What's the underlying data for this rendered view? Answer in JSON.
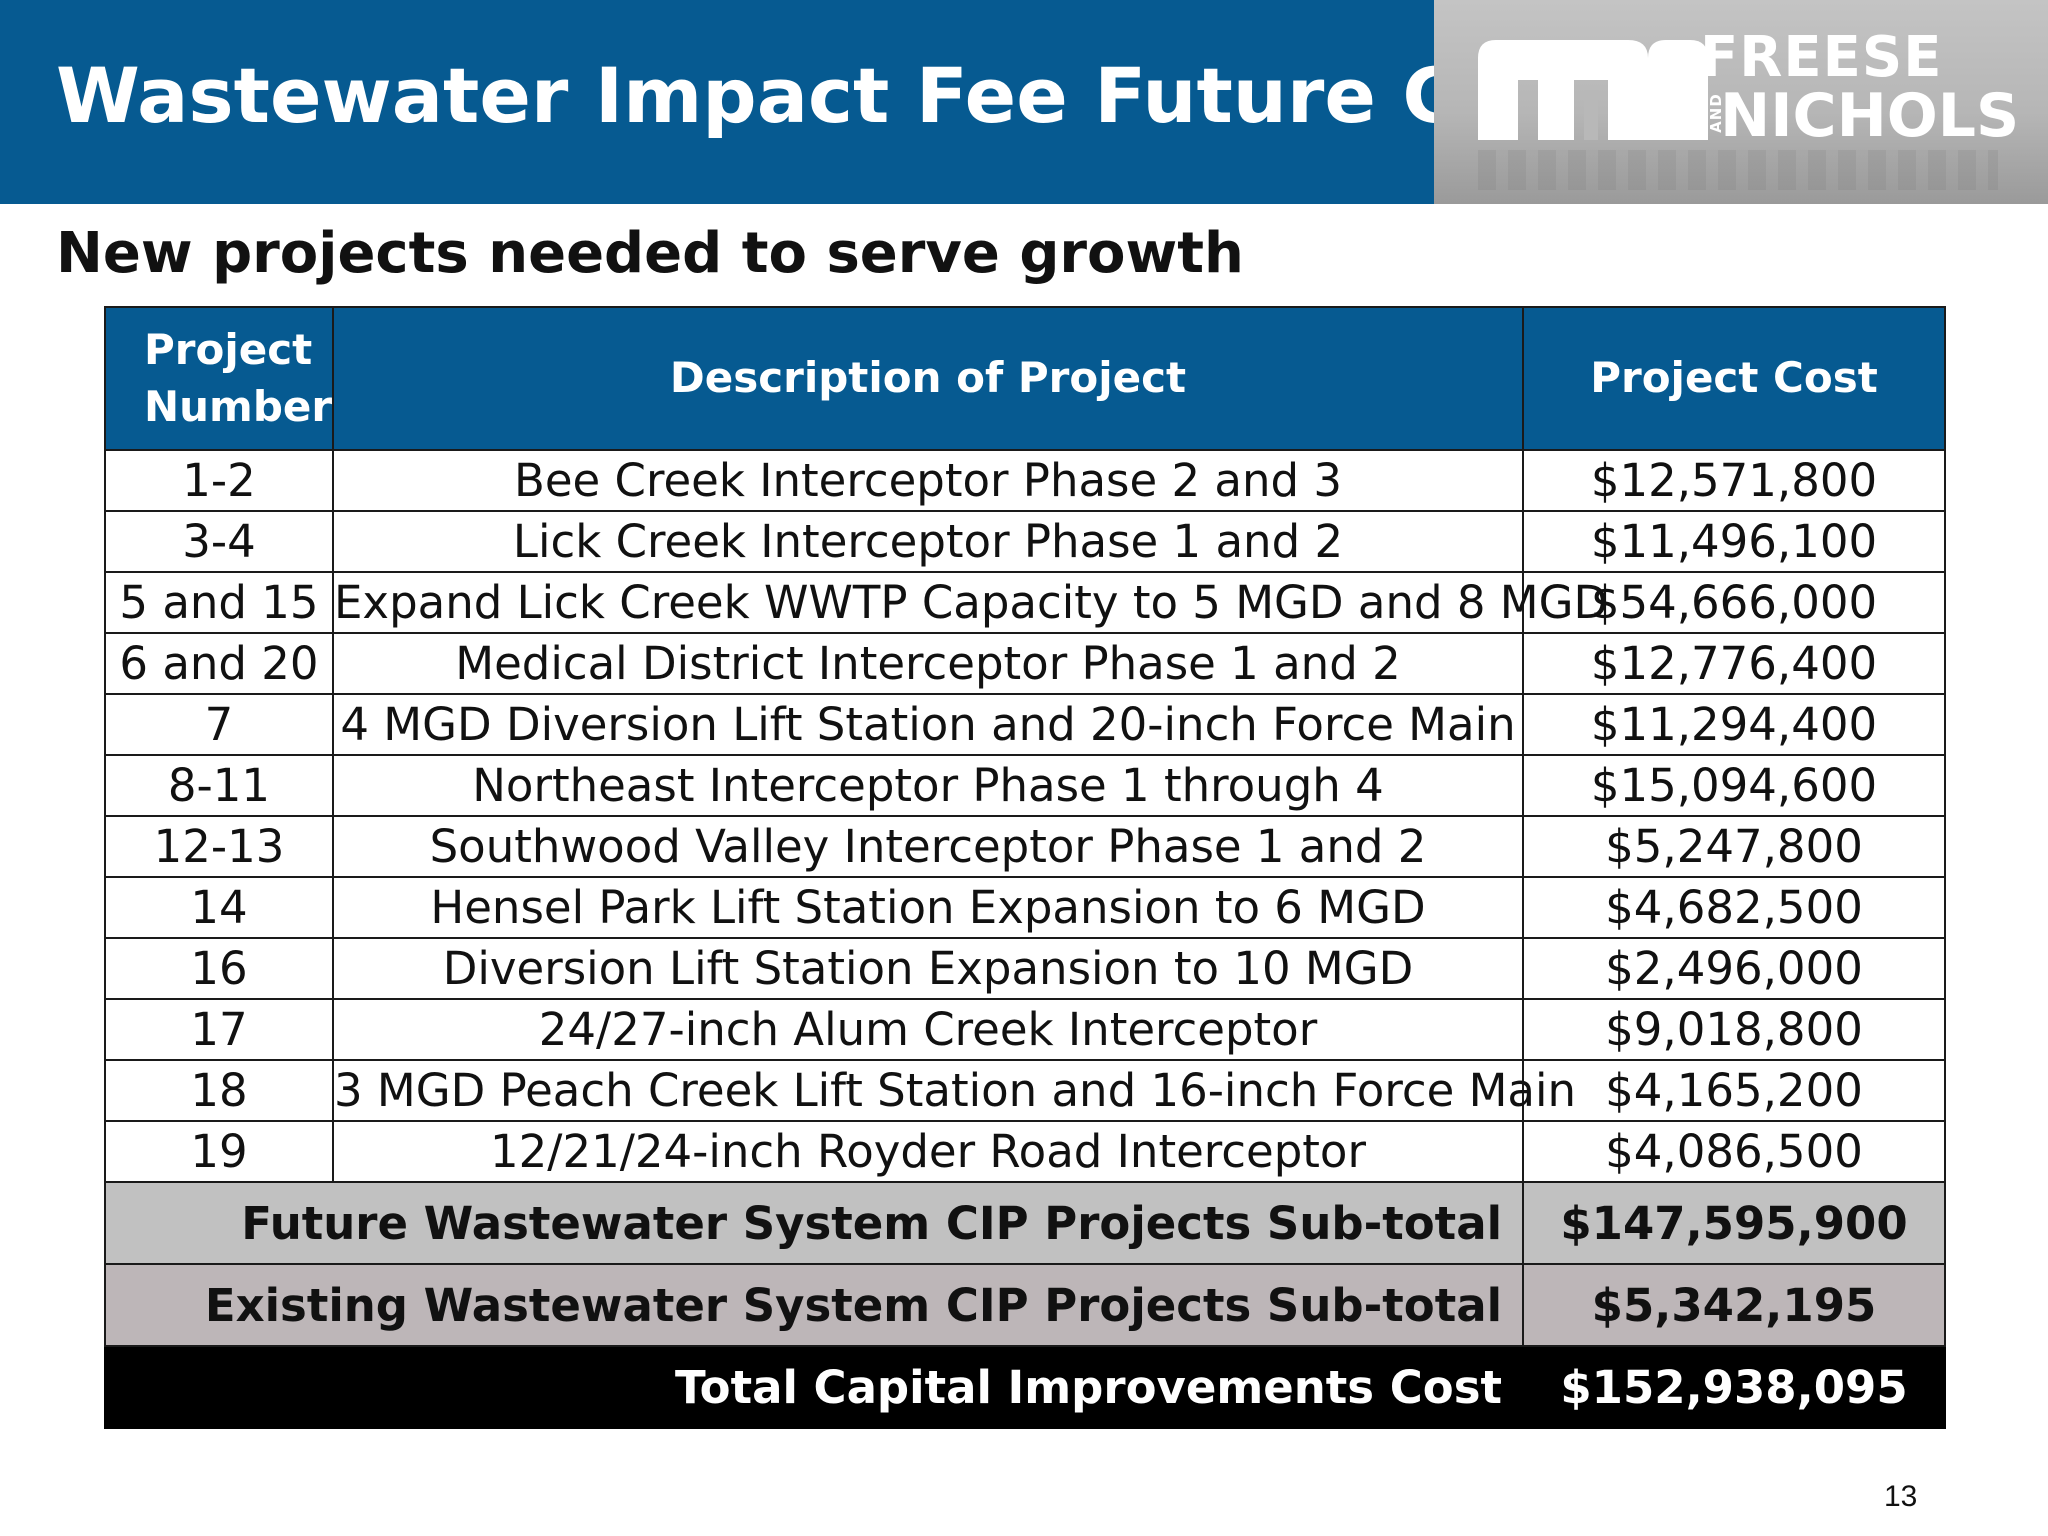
{
  "header": {
    "title": "Wastewater Impact Fee Future CIP"
  },
  "logo": {
    "line1": "FREESE",
    "and": "AND",
    "line2": "NICHOLS"
  },
  "subtitle": "New projects needed to serve growth",
  "table": {
    "columns": [
      "Project Number",
      "Description of Project",
      "Project Cost"
    ],
    "rows": [
      {
        "number": "1-2",
        "description": "Bee Creek Interceptor Phase 2 and 3",
        "cost": "$12,571,800"
      },
      {
        "number": "3-4",
        "description": "Lick Creek Interceptor Phase 1 and 2",
        "cost": "$11,496,100"
      },
      {
        "number": "5 and 15",
        "description": "Expand Lick Creek WWTP Capacity to 5 MGD and 8 MGD",
        "cost": "$54,666,000"
      },
      {
        "number": "6 and 20",
        "description": "Medical District Interceptor Phase 1 and 2",
        "cost": "$12,776,400"
      },
      {
        "number": "7",
        "description": "4 MGD Diversion Lift Station and 20-inch Force Main",
        "cost": "$11,294,400"
      },
      {
        "number": "8-11",
        "description": "Northeast Interceptor Phase 1 through 4",
        "cost": "$15,094,600"
      },
      {
        "number": "12-13",
        "description": "Southwood Valley Interceptor Phase 1 and 2",
        "cost": "$5,247,800"
      },
      {
        "number": "14",
        "description": "Hensel Park Lift Station Expansion to 6 MGD",
        "cost": "$4,682,500"
      },
      {
        "number": "16",
        "description": "Diversion Lift Station Expansion to 10 MGD",
        "cost": "$2,496,000"
      },
      {
        "number": "17",
        "description": "24/27-inch Alum Creek Interceptor",
        "cost": "$9,018,800"
      },
      {
        "number": "18",
        "description": "3 MGD Peach Creek Lift Station and 16-inch Force Main",
        "cost": "$4,165,200"
      },
      {
        "number": "19",
        "description": "12/21/24-inch Royder Road Interceptor",
        "cost": "$4,086,500"
      }
    ],
    "future_subtotal": {
      "label": "Future Wastewater System CIP Projects Sub-total",
      "value": "$147,595,900"
    },
    "existing_subtotal": {
      "label": "Existing Wastewater System CIP Projects Sub-total",
      "value": "$5,342,195"
    },
    "total": {
      "label": "Total Capital Improvements Cost",
      "value": "$152,938,095"
    }
  },
  "page_number": "13",
  "colors": {
    "header_blue": "#065a91",
    "subtotal_gray": "#c1c1c1",
    "total_black": "#000000"
  }
}
